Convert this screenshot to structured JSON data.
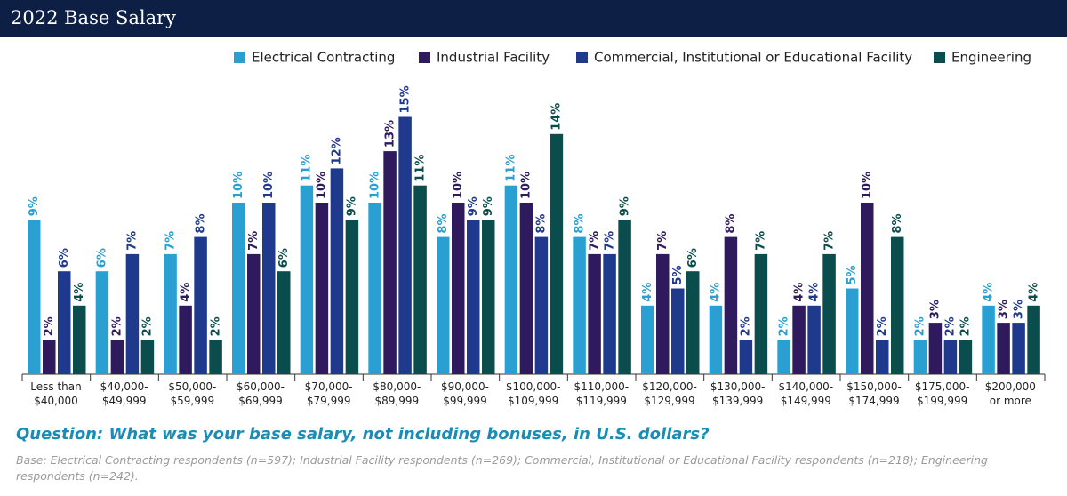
{
  "chart_data": {
    "type": "bar",
    "title": "2022 Base Salary",
    "categories": [
      "Less than\n$40,000",
      "$40,000-\n$49,999",
      "$50,000-\n$59,999",
      "$60,000-\n$69,999",
      "$70,000-\n$79,999",
      "$80,000-\n$89,999",
      "$90,000-\n$99,999",
      "$100,000-\n$109,999",
      "$110,000-\n$119,999",
      "$120,000-\n$129,999",
      "$130,000-\n$139,999",
      "$140,000-\n$149,999",
      "$150,000-\n$174,999",
      "$175,000-\n$199,999",
      "$200,000\nor more"
    ],
    "series": [
      {
        "name": "Electrical Contracting",
        "color": "#2aa0d2",
        "values": [
          9,
          6,
          7,
          10,
          11,
          10,
          8,
          11,
          8,
          4,
          4,
          2,
          5,
          2,
          4
        ],
        "value_labels": [
          "9%",
          "6%",
          "7%",
          "10%",
          "11%",
          "10%",
          "8%",
          "11%",
          "8%",
          "4%",
          "4%",
          "2%",
          "5%",
          "2%",
          "4%"
        ]
      },
      {
        "name": "Industrial Facility",
        "color": "#2e1a5c",
        "values": [
          2,
          2,
          4,
          7,
          10,
          13,
          10,
          10,
          7,
          7,
          8,
          4,
          10,
          3,
          3
        ],
        "value_labels": [
          "2%",
          "2%",
          "4%",
          "7%",
          "10%",
          "13%",
          "10%",
          "10%",
          "7%",
          "7%",
          "8%",
          "4%",
          "10%",
          "3%",
          "3%"
        ]
      },
      {
        "name": "Commercial, Institutional or Educational Facility",
        "color": "#1f3a8c",
        "values": [
          6,
          7,
          8,
          10,
          12,
          15,
          9,
          8,
          7,
          5,
          2,
          4,
          2,
          2,
          3
        ],
        "value_labels": [
          "6%",
          "7%",
          "8%",
          "10%",
          "12%",
          "15%",
          "9%",
          "8%",
          "7%",
          "5%",
          "2%",
          "4%",
          "2%",
          "2%",
          "3%"
        ]
      },
      {
        "name": "Engineering",
        "color": "#0b4d4d",
        "values": [
          4,
          2,
          2,
          6,
          9,
          11,
          9,
          14,
          9,
          6,
          7,
          7,
          8,
          2,
          4
        ],
        "value_labels": [
          "4%",
          "2%",
          "2%",
          "6%",
          "9%",
          "11%",
          "9%",
          "14%",
          "9%",
          "6%",
          "7%",
          "7%",
          "8%",
          "2%",
          "4%"
        ]
      }
    ],
    "question": "Question: What was your base salary, not including bonuses, in U.S. dollars?",
    "note": "Base: Electrical Contracting respondents (n=597); Industrial Facility respondents (n=269); Commercial, Institutional or Educational Facility respondents (n=218); Engineering respondents (n=242)."
  }
}
